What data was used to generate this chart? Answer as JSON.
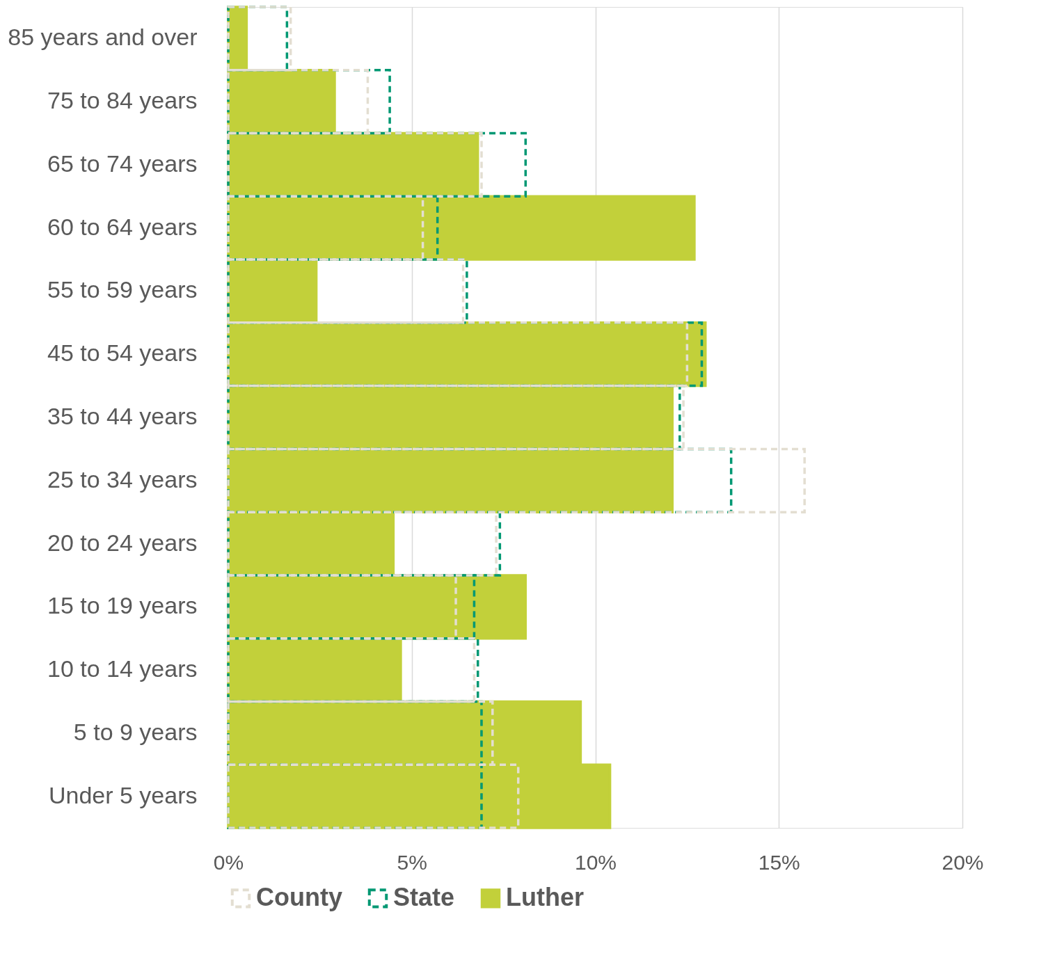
{
  "chart_data": {
    "type": "bar",
    "orientation": "horizontal",
    "categories": [
      "85 years and over",
      "75 to 84 years",
      "65 to 74 years",
      "60 to 64 years",
      "55 to 59 years",
      "45 to 54 years",
      "35 to 44 years",
      "25 to 34 years",
      "20 to 24 years",
      "15 to 19 years",
      "10 to 14 years",
      "5 to 9 years",
      "Under 5 years"
    ],
    "series": [
      {
        "name": "County",
        "color": "#e3ded1",
        "line_style": "dashed",
        "values": [
          1.7,
          3.8,
          6.9,
          5.3,
          6.4,
          12.5,
          12.4,
          15.7,
          7.3,
          6.2,
          6.7,
          7.2,
          7.9
        ]
      },
      {
        "name": "State",
        "color": "#009873",
        "line_style": "dashed",
        "values": [
          1.6,
          4.4,
          8.1,
          5.7,
          6.5,
          12.9,
          12.3,
          13.7,
          7.4,
          6.7,
          6.8,
          6.9,
          6.9
        ]
      },
      {
        "name": "Luther",
        "color": "#c2d03a",
        "line_style": "solid",
        "values": [
          0.5,
          2.9,
          6.8,
          12.7,
          2.4,
          13.0,
          12.1,
          12.1,
          4.5,
          8.1,
          4.7,
          9.6,
          10.4
        ]
      }
    ],
    "xlim": [
      0,
      20
    ],
    "xticks": [
      {
        "value": 0,
        "label": "0%"
      },
      {
        "value": 5,
        "label": "5%"
      },
      {
        "value": 10,
        "label": "10%"
      },
      {
        "value": 15,
        "label": "15%"
      },
      {
        "value": 20,
        "label": "20%"
      }
    ],
    "grid": "x",
    "legend": "bottom"
  }
}
